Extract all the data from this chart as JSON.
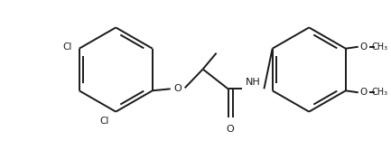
{
  "bg_color": "#ffffff",
  "line_color": "#1a1a1a",
  "line_width": 1.4,
  "font_size": 7.5,
  "fig_width": 4.33,
  "fig_height": 1.56,
  "dpi": 100,
  "xlim": [
    0,
    433
  ],
  "ylim": [
    0,
    156
  ]
}
